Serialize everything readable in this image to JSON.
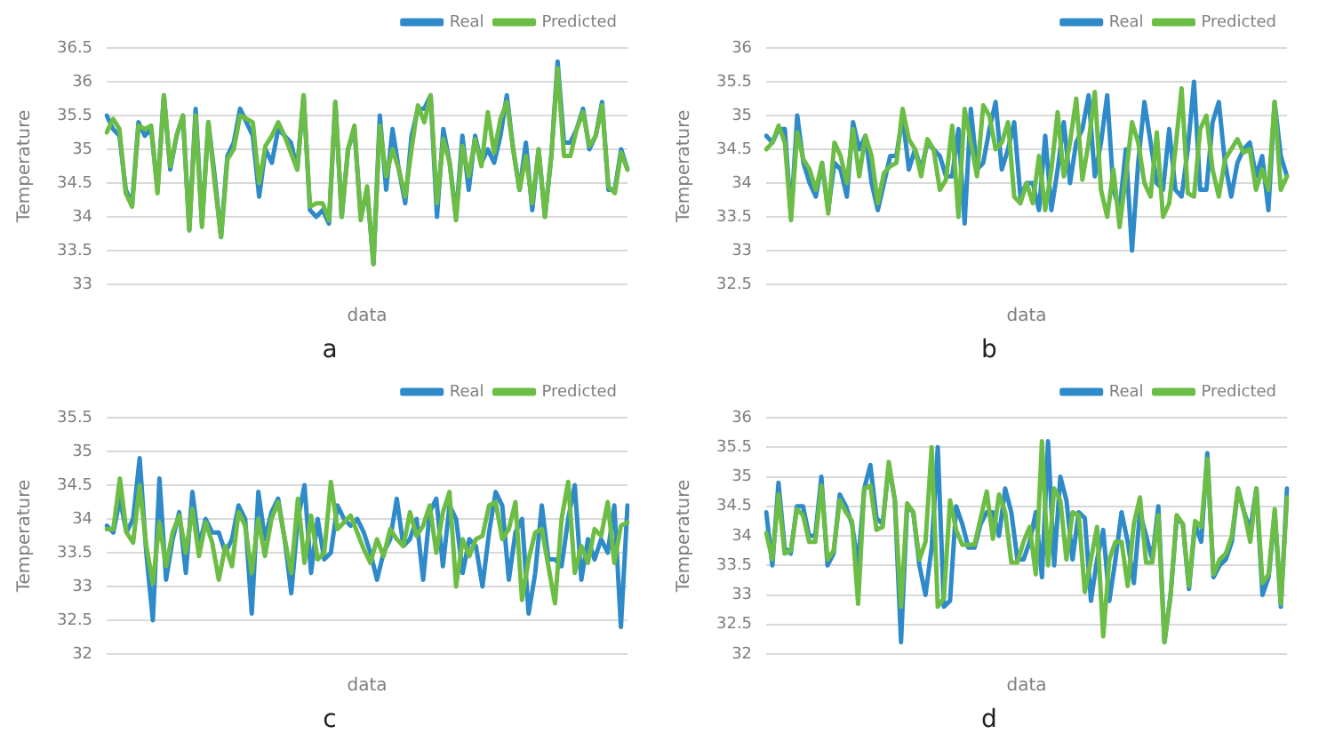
{
  "chart_data": [
    {
      "type": "line",
      "xlabel": "data",
      "ylabel": "Temperature",
      "annotations": [
        "a"
      ],
      "tick_labels": "y",
      "legend": "top right",
      "grid": "y",
      "marker": "none",
      "ylim": [
        33,
        36.5
      ],
      "yticks": [
        33,
        33.5,
        34,
        34.5,
        35,
        35.5,
        36,
        36.5
      ],
      "categories": [
        null,
        null,
        null,
        null,
        null,
        null,
        null,
        null,
        null,
        null,
        null,
        null,
        null,
        null,
        null,
        null,
        null,
        null,
        null,
        null,
        null,
        null,
        null,
        null,
        null,
        null,
        null,
        null,
        null,
        null,
        null,
        null,
        null,
        null,
        null,
        null,
        null,
        null,
        null,
        null,
        null,
        null,
        null,
        null,
        null,
        null,
        null,
        null,
        null,
        null,
        null,
        null,
        null,
        null,
        null,
        null,
        null,
        null,
        null,
        null,
        null,
        null,
        null,
        null,
        null,
        null,
        null,
        null,
        null,
        null,
        null,
        null,
        null,
        null,
        null,
        null,
        null,
        null,
        null,
        null,
        null,
        null,
        null
      ],
      "series": [
        {
          "name": "Real",
          "color": "#2e8ac8",
          "values": [
            35.5,
            35.3,
            35.2,
            34.4,
            34.2,
            35.4,
            35.2,
            35.3,
            34.4,
            35.8,
            34.7,
            35.2,
            35.5,
            33.8,
            35.6,
            33.9,
            35.4,
            34.6,
            33.7,
            34.9,
            35.1,
            35.6,
            35.4,
            35.2,
            34.3,
            35.0,
            34.8,
            35.3,
            35.2,
            35.1,
            34.7,
            35.8,
            34.1,
            34.0,
            34.1,
            33.9,
            35.7,
            34.0,
            35.0,
            35.3,
            34.0,
            34.4,
            33.3,
            35.5,
            34.4,
            35.3,
            34.7,
            34.2,
            35.2,
            35.6,
            35.6,
            35.8,
            34.0,
            35.3,
            34.8,
            34.0,
            35.2,
            34.4,
            35.2,
            34.8,
            35.0,
            34.8,
            35.2,
            35.8,
            35.0,
            34.4,
            35.1,
            34.1,
            35.0,
            34.0,
            34.9,
            36.3,
            35.1,
            35.1,
            35.3,
            35.6,
            35.0,
            35.2,
            35.7,
            34.4,
            34.4,
            35.0,
            34.7
          ]
        },
        {
          "name": "Predicted",
          "color": "#6cbd45",
          "values": [
            35.25,
            35.45,
            35.3,
            34.35,
            34.15,
            35.35,
            35.3,
            35.35,
            34.35,
            35.8,
            34.75,
            35.2,
            35.5,
            33.8,
            35.5,
            33.85,
            35.4,
            34.5,
            33.7,
            34.85,
            35.0,
            35.5,
            35.45,
            35.4,
            34.5,
            35.05,
            35.2,
            35.4,
            35.2,
            34.95,
            34.7,
            35.8,
            34.15,
            34.2,
            34.2,
            33.95,
            35.7,
            34.0,
            35.0,
            35.35,
            33.95,
            34.45,
            33.3,
            35.35,
            34.6,
            35.0,
            34.7,
            34.3,
            35.0,
            35.65,
            35.4,
            35.8,
            34.2,
            35.15,
            34.8,
            33.95,
            35.05,
            34.6,
            35.15,
            34.75,
            35.55,
            34.95,
            35.45,
            35.7,
            35.0,
            34.4,
            34.9,
            34.2,
            35.0,
            34.0,
            34.9,
            36.2,
            34.9,
            34.9,
            35.3,
            35.55,
            35.05,
            35.2,
            35.65,
            34.45,
            34.35,
            34.95,
            34.7
          ]
        }
      ]
    },
    {
      "type": "line",
      "xlabel": "data",
      "ylabel": "Temperature",
      "annotations": [
        "b"
      ],
      "tick_labels": "y",
      "legend": "top right",
      "grid": "y",
      "marker": "none",
      "ylim": [
        32.5,
        36
      ],
      "yticks": [
        32.5,
        33,
        33.5,
        34,
        34.5,
        35,
        35.5,
        36
      ],
      "categories": [
        null,
        null,
        null,
        null,
        null,
        null,
        null,
        null,
        null,
        null,
        null,
        null,
        null,
        null,
        null,
        null,
        null,
        null,
        null,
        null,
        null,
        null,
        null,
        null,
        null,
        null,
        null,
        null,
        null,
        null,
        null,
        null,
        null,
        null,
        null,
        null,
        null,
        null,
        null,
        null,
        null,
        null,
        null,
        null,
        null,
        null,
        null,
        null,
        null,
        null,
        null,
        null,
        null,
        null,
        null,
        null,
        null,
        null,
        null,
        null,
        null,
        null,
        null,
        null,
        null,
        null,
        null,
        null,
        null,
        null,
        null,
        null,
        null,
        null,
        null,
        null,
        null,
        null,
        null,
        null,
        null,
        null,
        null,
        null,
        null
      ],
      "series": [
        {
          "name": "Real",
          "color": "#2e8ac8",
          "values": [
            34.7,
            34.6,
            34.8,
            34.8,
            33.5,
            35.0,
            34.3,
            34.0,
            33.8,
            34.3,
            33.6,
            34.3,
            34.2,
            33.8,
            34.9,
            34.5,
            34.7,
            34.0,
            33.6,
            34.0,
            34.4,
            34.4,
            35.0,
            34.2,
            34.5,
            34.2,
            34.6,
            34.5,
            34.4,
            34.1,
            34.1,
            34.8,
            33.4,
            35.1,
            34.2,
            34.3,
            34.8,
            35.2,
            34.2,
            34.5,
            34.9,
            33.8,
            34.0,
            34.0,
            33.6,
            34.7,
            33.6,
            34.2,
            34.9,
            34.0,
            34.6,
            34.8,
            35.3,
            34.1,
            34.6,
            35.3,
            33.9,
            33.6,
            34.5,
            33.0,
            34.3,
            35.2,
            34.6,
            34.0,
            33.9,
            34.8,
            33.9,
            33.8,
            34.5,
            35.5,
            33.9,
            33.9,
            34.9,
            35.2,
            34.3,
            33.8,
            34.3,
            34.5,
            34.6,
            34.1,
            34.4,
            33.6,
            35.2,
            34.4,
            34.1
          ]
        },
        {
          "name": "Predicted",
          "color": "#6cbd45",
          "values": [
            34.5,
            34.6,
            34.85,
            34.6,
            33.45,
            34.75,
            34.35,
            34.2,
            33.9,
            34.3,
            33.55,
            34.6,
            34.4,
            34.0,
            34.8,
            34.1,
            34.7,
            34.4,
            33.7,
            34.15,
            34.25,
            34.3,
            35.1,
            34.65,
            34.5,
            34.1,
            34.65,
            34.5,
            33.9,
            34.05,
            34.85,
            33.5,
            35.1,
            34.6,
            34.1,
            35.15,
            35.0,
            34.5,
            34.6,
            34.9,
            33.8,
            33.7,
            34.0,
            33.7,
            34.4,
            33.6,
            34.2,
            35.05,
            34.1,
            34.6,
            35.25,
            34.05,
            34.6,
            35.35,
            33.9,
            33.5,
            34.2,
            33.35,
            34.1,
            34.9,
            34.6,
            34.0,
            33.8,
            34.75,
            33.5,
            33.7,
            34.5,
            35.4,
            33.85,
            33.8,
            34.8,
            35.0,
            34.2,
            33.8,
            34.35,
            34.5,
            34.65,
            34.45,
            34.5,
            33.9,
            34.2,
            33.9,
            35.2,
            33.9,
            34.1
          ]
        }
      ]
    },
    {
      "type": "line",
      "xlabel": "data",
      "ylabel": "Temperature",
      "annotations": [
        "c"
      ],
      "tick_labels": "y",
      "legend": "top right",
      "grid": "y",
      "marker": "none",
      "ylim": [
        32,
        35.5
      ],
      "yticks": [
        32,
        32.5,
        33,
        33.5,
        34,
        34.5,
        35,
        35.5
      ],
      "categories": [
        null,
        null,
        null,
        null,
        null,
        null,
        null,
        null,
        null,
        null,
        null,
        null,
        null,
        null,
        null,
        null,
        null,
        null,
        null,
        null,
        null,
        null,
        null,
        null,
        null,
        null,
        null,
        null,
        null,
        null,
        null,
        null,
        null,
        null,
        null,
        null,
        null,
        null,
        null,
        null,
        null,
        null,
        null,
        null,
        null,
        null,
        null,
        null,
        null,
        null,
        null,
        null,
        null,
        null,
        null,
        null,
        null,
        null,
        null,
        null,
        null,
        null,
        null,
        null,
        null,
        null,
        null,
        null,
        null,
        null,
        null,
        null,
        null,
        null,
        null,
        null,
        null,
        null,
        null,
        null
      ],
      "series": [
        {
          "name": "Real",
          "color": "#2e8ac8",
          "values": [
            33.9,
            33.8,
            34.3,
            33.8,
            34.0,
            34.9,
            33.5,
            32.5,
            34.6,
            33.1,
            33.7,
            34.1,
            33.2,
            34.4,
            33.6,
            34.0,
            33.8,
            33.8,
            33.5,
            33.7,
            34.2,
            34.0,
            32.6,
            34.4,
            33.7,
            34.1,
            34.3,
            33.7,
            32.9,
            34.0,
            34.5,
            33.2,
            34.0,
            33.4,
            33.5,
            34.2,
            34.0,
            33.9,
            34.0,
            33.8,
            33.5,
            33.1,
            33.5,
            33.7,
            34.3,
            33.6,
            33.7,
            34.0,
            33.1,
            34.1,
            34.3,
            33.3,
            34.2,
            34.0,
            33.2,
            33.7,
            33.6,
            33.0,
            33.8,
            34.4,
            34.2,
            33.1,
            33.8,
            34.0,
            32.6,
            33.2,
            34.2,
            33.4,
            33.4,
            33.3,
            34.0,
            34.5,
            33.1,
            33.7,
            33.4,
            33.7,
            33.5,
            34.2,
            32.4,
            34.2
          ]
        },
        {
          "name": "Predicted",
          "color": "#6cbd45",
          "values": [
            33.85,
            33.85,
            34.6,
            33.8,
            33.65,
            34.5,
            33.6,
            33.05,
            33.95,
            33.3,
            33.8,
            34.05,
            33.5,
            34.15,
            33.45,
            33.95,
            33.65,
            33.1,
            33.6,
            33.3,
            34.1,
            33.9,
            33.2,
            34.0,
            33.45,
            34.0,
            34.25,
            33.7,
            33.2,
            34.3,
            33.35,
            34.05,
            33.4,
            33.5,
            34.55,
            33.85,
            33.95,
            34.05,
            33.8,
            33.55,
            33.35,
            33.7,
            33.45,
            33.85,
            33.7,
            33.6,
            34.1,
            33.75,
            33.9,
            34.2,
            33.5,
            34.1,
            34.4,
            33.0,
            33.7,
            33.45,
            33.7,
            33.75,
            34.2,
            34.25,
            33.7,
            33.85,
            34.25,
            32.8,
            33.4,
            33.8,
            33.85,
            33.3,
            32.75,
            34.0,
            34.55,
            33.2,
            33.6,
            33.35,
            33.85,
            33.75,
            34.25,
            33.35,
            33.9,
            33.95
          ]
        }
      ]
    },
    {
      "type": "line",
      "xlabel": "data",
      "ylabel": "Temperature",
      "annotations": [
        "d"
      ],
      "tick_labels": "y",
      "legend": "top right",
      "grid": "y",
      "marker": "none",
      "ylim": [
        32,
        36
      ],
      "yticks": [
        32,
        32.5,
        33,
        33.5,
        34,
        34.5,
        35,
        35.5,
        36
      ],
      "categories": [
        null,
        null,
        null,
        null,
        null,
        null,
        null,
        null,
        null,
        null,
        null,
        null,
        null,
        null,
        null,
        null,
        null,
        null,
        null,
        null,
        null,
        null,
        null,
        null,
        null,
        null,
        null,
        null,
        null,
        null,
        null,
        null,
        null,
        null,
        null,
        null,
        null,
        null,
        null,
        null,
        null,
        null,
        null,
        null,
        null,
        null,
        null,
        null,
        null,
        null,
        null,
        null,
        null,
        null,
        null,
        null,
        null,
        null,
        null,
        null,
        null,
        null,
        null,
        null,
        null,
        null,
        null,
        null,
        null,
        null,
        null,
        null,
        null,
        null,
        null,
        null,
        null,
        null,
        null,
        null,
        null,
        null,
        null,
        null,
        null,
        null
      ],
      "series": [
        {
          "name": "Real",
          "color": "#2e8ac8",
          "values": [
            34.4,
            33.5,
            34.9,
            33.8,
            33.7,
            34.5,
            34.5,
            34.0,
            34.0,
            35.0,
            33.5,
            33.7,
            34.7,
            34.5,
            34.2,
            33.5,
            34.8,
            35.2,
            34.3,
            34.2,
            35.2,
            34.6,
            32.2,
            34.5,
            34.4,
            33.5,
            33.0,
            33.8,
            35.5,
            32.8,
            32.9,
            34.5,
            34.2,
            33.8,
            33.8,
            34.2,
            34.4,
            34.4,
            34.0,
            34.8,
            34.4,
            33.6,
            33.6,
            33.9,
            34.4,
            33.3,
            35.6,
            33.5,
            35.0,
            34.6,
            33.6,
            34.4,
            34.3,
            32.9,
            33.6,
            34.1,
            32.9,
            33.6,
            34.4,
            33.9,
            33.2,
            34.4,
            34.0,
            33.6,
            34.5,
            32.2,
            33.0,
            34.3,
            34.2,
            33.1,
            34.2,
            33.9,
            35.4,
            33.3,
            33.5,
            33.6,
            33.9,
            34.8,
            34.4,
            34.1,
            34.8,
            33.0,
            33.3,
            34.4,
            32.8,
            34.8
          ]
        },
        {
          "name": "Predicted",
          "color": "#6cbd45",
          "values": [
            34.05,
            33.6,
            34.7,
            33.7,
            33.75,
            34.45,
            34.35,
            33.9,
            33.9,
            34.85,
            33.6,
            33.75,
            34.6,
            34.4,
            34.25,
            32.85,
            34.8,
            34.85,
            34.1,
            34.15,
            35.25,
            34.6,
            32.8,
            34.55,
            34.4,
            33.6,
            33.9,
            35.5,
            32.8,
            32.95,
            34.6,
            34.1,
            33.85,
            33.85,
            33.85,
            34.3,
            34.75,
            33.95,
            34.7,
            34.4,
            33.55,
            33.55,
            33.9,
            34.15,
            33.35,
            35.6,
            33.5,
            34.8,
            34.6,
            33.6,
            34.4,
            34.35,
            33.05,
            33.6,
            34.15,
            32.3,
            33.6,
            33.9,
            33.9,
            33.15,
            34.2,
            34.65,
            33.55,
            33.55,
            34.35,
            32.2,
            33.0,
            34.35,
            34.2,
            33.15,
            34.25,
            34.15,
            35.3,
            33.35,
            33.6,
            33.7,
            34.0,
            34.8,
            34.4,
            33.9,
            34.8,
            33.2,
            33.35,
            34.45,
            32.85,
            34.65
          ]
        }
      ]
    }
  ]
}
